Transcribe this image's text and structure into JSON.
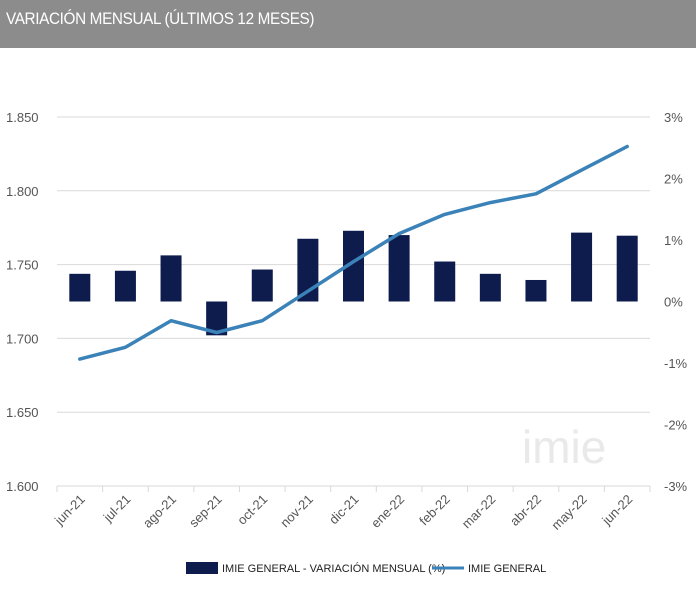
{
  "header": {
    "title": "VARIACIÓN MENSUAL (ÚLTIMOS 12 MESES)"
  },
  "watermark": "imie",
  "colors": {
    "bar": "#0d1b4d",
    "line": "#3b82b8",
    "grid": "#d9d9d9",
    "header_bg": "#8c8c8c"
  },
  "chart_data": {
    "type": "bar+line",
    "categories": [
      "jun-21",
      "jul-21",
      "ago-21",
      "sep-21",
      "oct-21",
      "nov-21",
      "dic-21",
      "ene-22",
      "feb-22",
      "mar-22",
      "abr-22",
      "may-22",
      "jun-22"
    ],
    "series": [
      {
        "name": "IMIE GENERAL - VARIACIÓN MENSUAL (%)",
        "type": "bar",
        "axis": "right",
        "values": [
          0.45,
          0.5,
          0.75,
          -0.55,
          0.52,
          1.02,
          1.15,
          1.08,
          0.65,
          0.45,
          0.35,
          1.12,
          1.07
        ]
      },
      {
        "name": "IMIE GENERAL",
        "type": "line",
        "axis": "left",
        "values": [
          1686,
          1694,
          1712,
          1704,
          1712,
          1732,
          1752,
          1771,
          1784,
          1792,
          1798,
          1814,
          1830
        ]
      }
    ],
    "y_left": {
      "range": [
        1600,
        1850
      ],
      "ticks": [
        "1.600",
        "1.650",
        "1.700",
        "1.750",
        "1.800",
        "1.850"
      ]
    },
    "y_right": {
      "range": [
        -3,
        3
      ],
      "ticks": [
        "-3%",
        "-2%",
        "-1%",
        "0%",
        "1%",
        "2%",
        "3%"
      ]
    },
    "grid": true,
    "legend_position": "bottom"
  }
}
